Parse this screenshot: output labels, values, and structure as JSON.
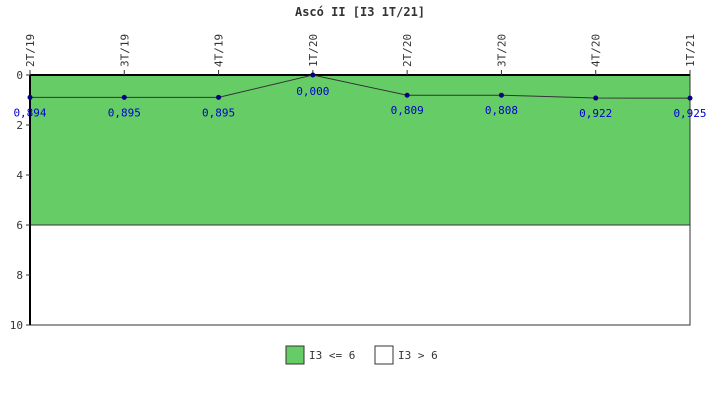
{
  "chart_data": {
    "type": "line",
    "title": "Ascó II [I3 1T/21]",
    "categories": [
      "2T/19",
      "3T/19",
      "4T/19",
      "1T/20",
      "2T/20",
      "3T/20",
      "4T/20",
      "1T/21"
    ],
    "series": [
      {
        "values": [
          0.894,
          0.895,
          0.895,
          0.0,
          0.809,
          0.808,
          0.922,
          0.925
        ]
      }
    ],
    "value_labels": [
      "0,894",
      "0,895",
      "0,895",
      "0,000",
      "0,809",
      "0,808",
      "0,922",
      "0,925"
    ],
    "ylim": [
      0,
      10
    ],
    "y_ticks": [
      0,
      2,
      4,
      6,
      8,
      10
    ],
    "y_inverted": true,
    "bands": [
      {
        "from": 0,
        "to": 6,
        "color": "#66cc66",
        "label": "I3 <= 6"
      },
      {
        "from": 6,
        "to": 10,
        "color": "#ffffff",
        "label": "I3 > 6"
      }
    ],
    "line_color": "#333333",
    "marker_color": "#000080",
    "label_color": "#0000cc",
    "legend_position": "bottom-center"
  }
}
